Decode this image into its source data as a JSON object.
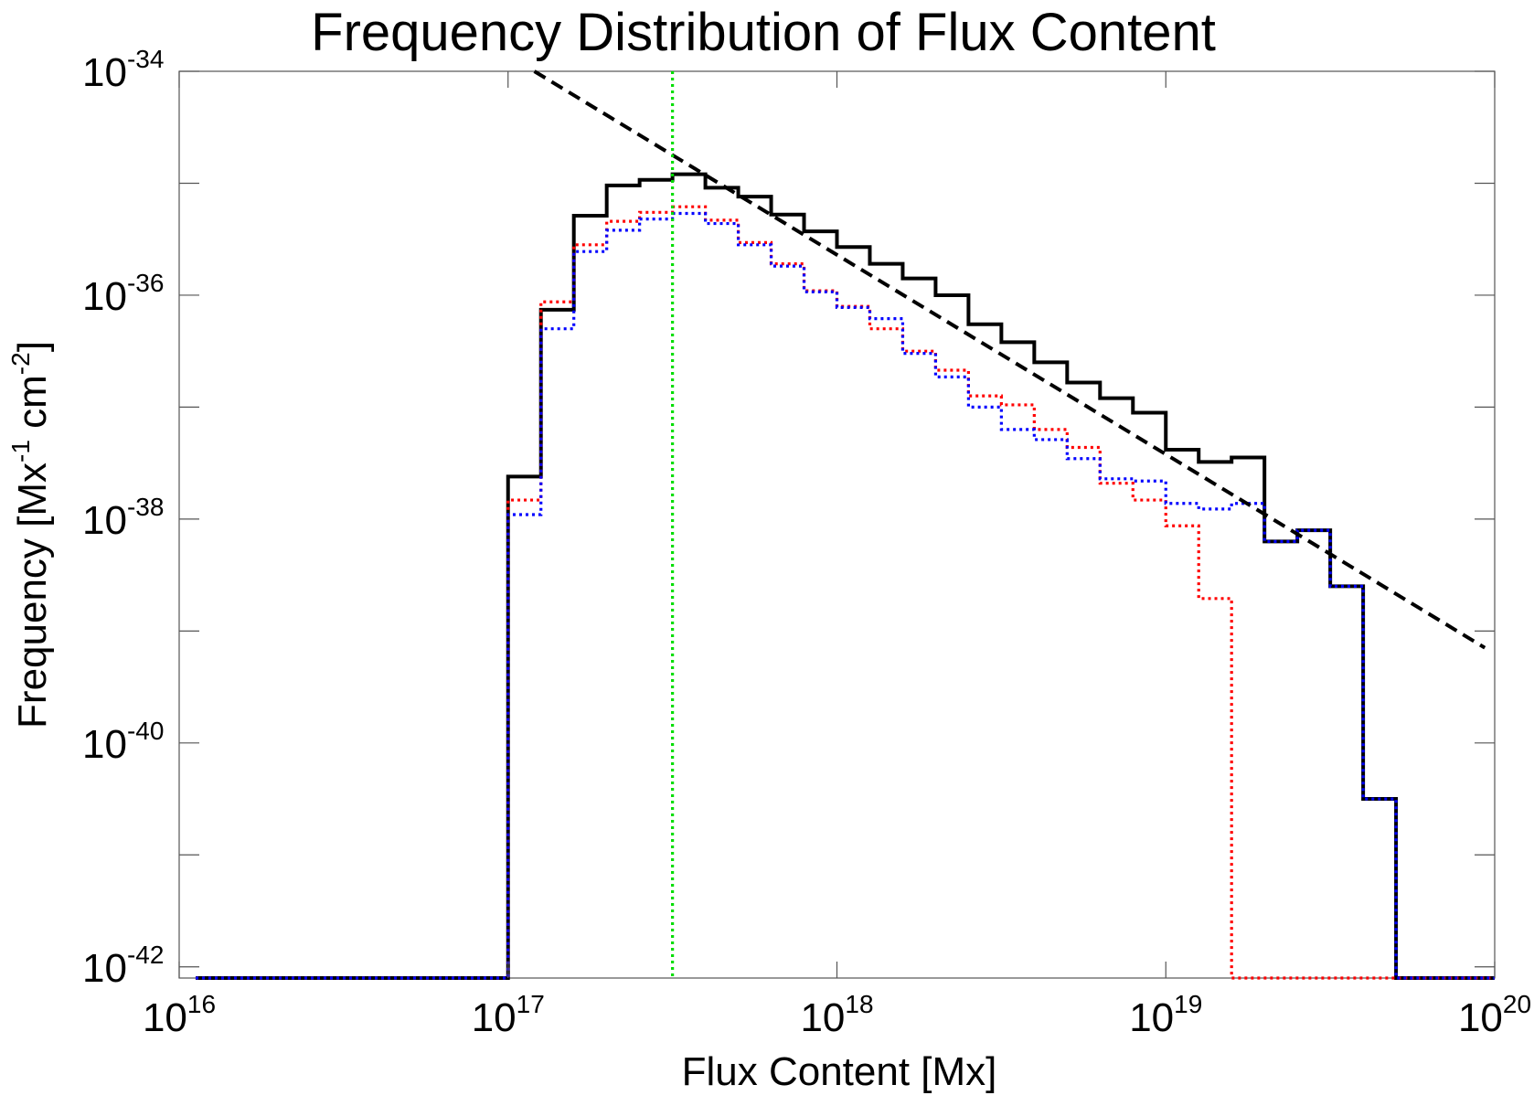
{
  "chart_data": {
    "type": "line",
    "title": "Frequency Distribution of Flux Content",
    "xlabel": "Flux Content [Mx]",
    "ylabel": {
      "prefix": "Frequency [Mx",
      "sup1": "-1",
      "mid": " cm",
      "sup2": "-2",
      "suffix": "]"
    },
    "x_scale": "log",
    "y_scale": "log",
    "xlim_log10": [
      16,
      20
    ],
    "ylim_log10": [
      -42.1,
      -34
    ],
    "x_ticks": [
      {
        "base": "10",
        "exp": "16",
        "log10": 16
      },
      {
        "base": "10",
        "exp": "17",
        "log10": 17
      },
      {
        "base": "10",
        "exp": "18",
        "log10": 18
      },
      {
        "base": "10",
        "exp": "19",
        "log10": 19
      },
      {
        "base": "10",
        "exp": "20",
        "log10": 20
      }
    ],
    "y_ticks": [
      {
        "base": "10",
        "exp": "-34",
        "log10": -34
      },
      {
        "base": "10",
        "exp": "-36",
        "log10": -36
      },
      {
        "base": "10",
        "exp": "-38",
        "log10": -38
      },
      {
        "base": "10",
        "exp": "-40",
        "log10": -40
      },
      {
        "base": "10",
        "exp": "-42",
        "log10": -42
      }
    ],
    "y_minor_ticks_log10": [
      -35,
      -37,
      -39,
      -41
    ],
    "bin_edges_log10": [
      17.0,
      17.1,
      17.2,
      17.3,
      17.4,
      17.5,
      17.6,
      17.7,
      17.8,
      17.9,
      18.0,
      18.1,
      18.2,
      18.3,
      18.4,
      18.5,
      18.6,
      18.7,
      18.8,
      18.9,
      19.0,
      19.1,
      19.2,
      19.3,
      19.4,
      19.5,
      19.6,
      19.7,
      19.8,
      19.9,
      20.0
    ],
    "x_start_log10": 16.05,
    "floor_log10": -42.1,
    "series": [
      {
        "color": "#000000",
        "line_style": "solid",
        "values_log10": [
          -37.62,
          -36.13,
          -35.29,
          -35.02,
          -34.97,
          -34.92,
          -35.04,
          -35.12,
          -35.28,
          -35.43,
          -35.57,
          -35.72,
          -35.85,
          -36.0,
          -36.26,
          -36.42,
          -36.6,
          -36.78,
          -36.92,
          -37.05,
          -37.38,
          -37.49,
          -37.45,
          -38.2,
          -38.1,
          -38.6,
          -40.5,
          -42.1,
          -42.1,
          -42.1
        ]
      },
      {
        "color": "#ff0000",
        "line_style": "dotted",
        "values_log10": [
          -37.83,
          -36.06,
          -35.55,
          -35.34,
          -35.26,
          -35.21,
          -35.33,
          -35.53,
          -35.72,
          -35.96,
          -36.1,
          -36.3,
          -36.5,
          -36.67,
          -36.9,
          -36.98,
          -37.2,
          -37.36,
          -37.68,
          -37.83,
          -38.06,
          -38.71,
          -42.1,
          -42.1,
          -42.1,
          -42.1,
          -42.1,
          -42.1,
          -42.1,
          -42.1
        ]
      },
      {
        "color": "#0000ff",
        "line_style": "dotted",
        "values_log10": [
          -37.96,
          -36.3,
          -35.61,
          -35.42,
          -35.32,
          -35.27,
          -35.36,
          -35.55,
          -35.74,
          -35.97,
          -36.11,
          -36.21,
          -36.52,
          -36.73,
          -37.0,
          -37.2,
          -37.29,
          -37.46,
          -37.64,
          -37.66,
          -37.86,
          -37.91,
          -37.86,
          -38.2,
          -38.1,
          -38.6,
          -40.5,
          -42.1,
          -42.1,
          -42.1
        ]
      }
    ],
    "reference_lines": [
      {
        "kind": "powerlaw_fit",
        "color": "#000000",
        "line_style": "dashed",
        "x_log10": [
          17.08,
          19.97
        ],
        "y_log10": [
          -34.0,
          -39.15
        ]
      },
      {
        "kind": "vertical",
        "color": "#00dd00",
        "line_style": "dotted",
        "x_log10": 17.5
      }
    ],
    "grid": false,
    "legend": "none"
  }
}
